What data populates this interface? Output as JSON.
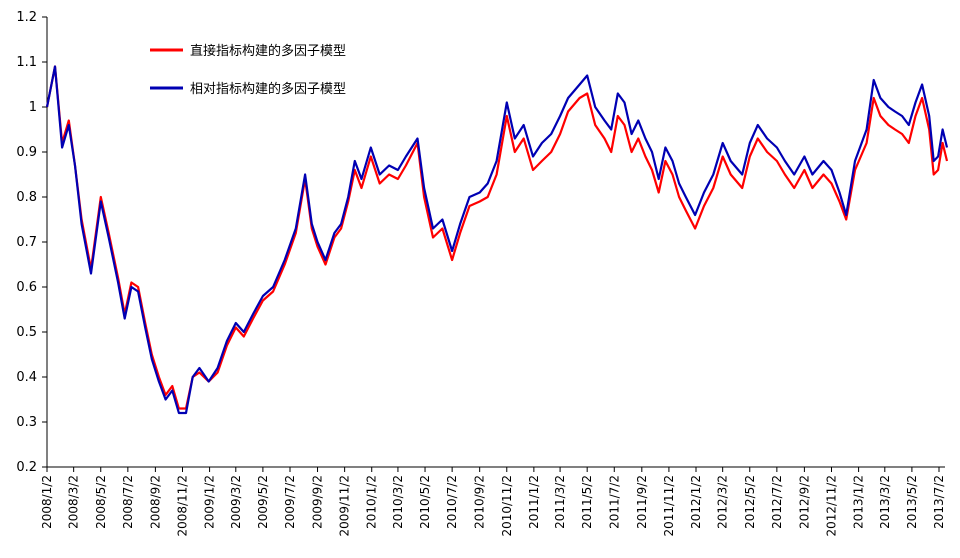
{
  "chart_data": {
    "type": "line",
    "title": "",
    "xlabel": "",
    "ylabel": "",
    "ylim": [
      0.2,
      1.2
    ],
    "yticks": [
      "0.2",
      "0.3",
      "0.4",
      "0.5",
      "0.6",
      "0.7",
      "0.8",
      "0.9",
      "1",
      "1.1",
      "1.2"
    ],
    "xticks": [
      "2008/1/2",
      "2008/3/2",
      "2008/5/2",
      "2008/7/2",
      "2008/9/2",
      "2008/11/2",
      "2009/1/2",
      "2009/3/2",
      "2009/5/2",
      "2009/7/2",
      "2009/9/2",
      "2009/11/2",
      "2010/1/2",
      "2010/3/2",
      "2010/5/2",
      "2010/7/2",
      "2010/9/2",
      "2010/11/2",
      "2011/1/2",
      "2011/3/2",
      "2011/5/2",
      "2011/7/2",
      "2011/9/2",
      "2011/11/2",
      "2012/1/2",
      "2012/3/2",
      "2012/5/2",
      "2012/7/2",
      "2012/9/2",
      "2012/11/2",
      "2013/1/2",
      "2013/3/2",
      "2013/5/2",
      "2013/7/2"
    ],
    "grid": false,
    "legend_position": "top-left",
    "series": [
      {
        "name": "直接指标构建的多因子模型",
        "color": "#ff0000",
        "points": [
          [
            "2008/1/2",
            1.0
          ],
          [
            "2008/1/20",
            1.09
          ],
          [
            "2008/2/5",
            0.92
          ],
          [
            "2008/2/20",
            0.97
          ],
          [
            "2008/3/5",
            0.87
          ],
          [
            "2008/3/20",
            0.75
          ],
          [
            "2008/4/10",
            0.64
          ],
          [
            "2008/5/2",
            0.8
          ],
          [
            "2008/5/20",
            0.72
          ],
          [
            "2008/6/10",
            0.62
          ],
          [
            "2008/6/25",
            0.54
          ],
          [
            "2008/7/10",
            0.61
          ],
          [
            "2008/7/25",
            0.6
          ],
          [
            "2008/8/10",
            0.52
          ],
          [
            "2008/8/25",
            0.45
          ],
          [
            "2008/9/10",
            0.4
          ],
          [
            "2008/9/25",
            0.36
          ],
          [
            "2008/10/10",
            0.38
          ],
          [
            "2008/10/25",
            0.33
          ],
          [
            "2008/11/10",
            0.33
          ],
          [
            "2008/11/25",
            0.4
          ],
          [
            "2008/12/10",
            0.41
          ],
          [
            "2008/12/31",
            0.39
          ],
          [
            "2009/1/20",
            0.41
          ],
          [
            "2009/2/10",
            0.47
          ],
          [
            "2009/3/2",
            0.51
          ],
          [
            "2009/3/20",
            0.49
          ],
          [
            "2009/4/10",
            0.53
          ],
          [
            "2009/5/2",
            0.57
          ],
          [
            "2009/5/25",
            0.59
          ],
          [
            "2009/6/20",
            0.65
          ],
          [
            "2009/7/15",
            0.72
          ],
          [
            "2009/8/5",
            0.84
          ],
          [
            "2009/8/20",
            0.73
          ],
          [
            "2009/9/2",
            0.69
          ],
          [
            "2009/9/20",
            0.65
          ],
          [
            "2009/10/10",
            0.71
          ],
          [
            "2009/10/25",
            0.73
          ],
          [
            "2009/11/10",
            0.79
          ],
          [
            "2009/11/25",
            0.86
          ],
          [
            "2009/12/10",
            0.82
          ],
          [
            "2009/12/31",
            0.89
          ],
          [
            "2010/1/20",
            0.83
          ],
          [
            "2010/2/10",
            0.85
          ],
          [
            "2010/3/2",
            0.84
          ],
          [
            "2010/3/20",
            0.87
          ],
          [
            "2010/4/15",
            0.92
          ],
          [
            "2010/4/30",
            0.8
          ],
          [
            "2010/5/20",
            0.71
          ],
          [
            "2010/6/10",
            0.73
          ],
          [
            "2010/7/2",
            0.66
          ],
          [
            "2010/7/20",
            0.72
          ],
          [
            "2010/8/10",
            0.78
          ],
          [
            "2010/9/2",
            0.79
          ],
          [
            "2010/9/20",
            0.8
          ],
          [
            "2010/10/10",
            0.85
          ],
          [
            "2010/11/2",
            0.98
          ],
          [
            "2010/11/20",
            0.9
          ],
          [
            "2010/12/10",
            0.93
          ],
          [
            "2010/12/31",
            0.86
          ],
          [
            "2011/1/20",
            0.88
          ],
          [
            "2011/2/10",
            0.9
          ],
          [
            "2011/3/2",
            0.94
          ],
          [
            "2011/3/20",
            0.99
          ],
          [
            "2011/4/15",
            1.02
          ],
          [
            "2011/5/2",
            1.03
          ],
          [
            "2011/5/20",
            0.96
          ],
          [
            "2011/6/10",
            0.93
          ],
          [
            "2011/6/25",
            0.9
          ],
          [
            "2011/7/10",
            0.98
          ],
          [
            "2011/7/25",
            0.96
          ],
          [
            "2011/8/10",
            0.9
          ],
          [
            "2011/8/25",
            0.93
          ],
          [
            "2011/9/10",
            0.89
          ],
          [
            "2011/9/25",
            0.86
          ],
          [
            "2011/10/10",
            0.81
          ],
          [
            "2011/10/25",
            0.88
          ],
          [
            "2011/11/10",
            0.85
          ],
          [
            "2011/11/25",
            0.8
          ],
          [
            "2011/12/10",
            0.77
          ],
          [
            "2011/12/31",
            0.73
          ],
          [
            "2012/1/20",
            0.78
          ],
          [
            "2012/2/10",
            0.82
          ],
          [
            "2012/3/2",
            0.89
          ],
          [
            "2012/3/20",
            0.85
          ],
          [
            "2012/4/15",
            0.82
          ],
          [
            "2012/5/2",
            0.89
          ],
          [
            "2012/5/20",
            0.93
          ],
          [
            "2012/6/10",
            0.9
          ],
          [
            "2012/7/2",
            0.88
          ],
          [
            "2012/7/20",
            0.85
          ],
          [
            "2012/8/10",
            0.82
          ],
          [
            "2012/9/2",
            0.86
          ],
          [
            "2012/9/20",
            0.82
          ],
          [
            "2012/10/15",
            0.85
          ],
          [
            "2012/11/2",
            0.83
          ],
          [
            "2012/11/20",
            0.79
          ],
          [
            "2012/12/5",
            0.75
          ],
          [
            "2012/12/25",
            0.86
          ],
          [
            "2013/1/20",
            0.92
          ],
          [
            "2013/2/5",
            1.02
          ],
          [
            "2013/2/20",
            0.98
          ],
          [
            "2013/3/10",
            0.96
          ],
          [
            "2013/3/25",
            0.95
          ],
          [
            "2013/4/10",
            0.94
          ],
          [
            "2013/4/25",
            0.92
          ],
          [
            "2013/5/10",
            0.98
          ],
          [
            "2013/5/25",
            1.02
          ],
          [
            "2013/6/10",
            0.95
          ],
          [
            "2013/6/20",
            0.85
          ],
          [
            "2013/6/30",
            0.86
          ],
          [
            "2013/7/10",
            0.92
          ],
          [
            "2013/7/20",
            0.88
          ]
        ]
      },
      {
        "name": "相对指标构建的多因子模型",
        "color": "#0000b3",
        "points": [
          [
            "2008/1/2",
            1.0
          ],
          [
            "2008/1/20",
            1.09
          ],
          [
            "2008/2/5",
            0.91
          ],
          [
            "2008/2/20",
            0.96
          ],
          [
            "2008/3/5",
            0.87
          ],
          [
            "2008/3/20",
            0.74
          ],
          [
            "2008/4/10",
            0.63
          ],
          [
            "2008/5/2",
            0.79
          ],
          [
            "2008/5/20",
            0.71
          ],
          [
            "2008/6/10",
            0.61
          ],
          [
            "2008/6/25",
            0.53
          ],
          [
            "2008/7/10",
            0.6
          ],
          [
            "2008/7/25",
            0.59
          ],
          [
            "2008/8/10",
            0.51
          ],
          [
            "2008/8/25",
            0.44
          ],
          [
            "2008/9/10",
            0.39
          ],
          [
            "2008/9/25",
            0.35
          ],
          [
            "2008/10/10",
            0.37
          ],
          [
            "2008/10/25",
            0.32
          ],
          [
            "2008/11/10",
            0.32
          ],
          [
            "2008/11/25",
            0.4
          ],
          [
            "2008/12/10",
            0.42
          ],
          [
            "2008/12/31",
            0.39
          ],
          [
            "2009/1/20",
            0.42
          ],
          [
            "2009/2/10",
            0.48
          ],
          [
            "2009/3/2",
            0.52
          ],
          [
            "2009/3/20",
            0.5
          ],
          [
            "2009/4/10",
            0.54
          ],
          [
            "2009/5/2",
            0.58
          ],
          [
            "2009/5/25",
            0.6
          ],
          [
            "2009/6/20",
            0.66
          ],
          [
            "2009/7/15",
            0.73
          ],
          [
            "2009/8/5",
            0.85
          ],
          [
            "2009/8/20",
            0.74
          ],
          [
            "2009/9/2",
            0.7
          ],
          [
            "2009/9/20",
            0.66
          ],
          [
            "2009/10/10",
            0.72
          ],
          [
            "2009/10/25",
            0.74
          ],
          [
            "2009/11/10",
            0.8
          ],
          [
            "2009/11/25",
            0.88
          ],
          [
            "2009/12/10",
            0.84
          ],
          [
            "2009/12/31",
            0.91
          ],
          [
            "2010/1/20",
            0.85
          ],
          [
            "2010/2/10",
            0.87
          ],
          [
            "2010/3/2",
            0.86
          ],
          [
            "2010/3/20",
            0.89
          ],
          [
            "2010/4/15",
            0.93
          ],
          [
            "2010/4/30",
            0.82
          ],
          [
            "2010/5/20",
            0.73
          ],
          [
            "2010/6/10",
            0.75
          ],
          [
            "2010/7/2",
            0.68
          ],
          [
            "2010/7/20",
            0.74
          ],
          [
            "2010/8/10",
            0.8
          ],
          [
            "2010/9/2",
            0.81
          ],
          [
            "2010/9/20",
            0.83
          ],
          [
            "2010/10/10",
            0.88
          ],
          [
            "2010/11/2",
            1.01
          ],
          [
            "2010/11/20",
            0.93
          ],
          [
            "2010/12/10",
            0.96
          ],
          [
            "2010/12/31",
            0.89
          ],
          [
            "2011/1/20",
            0.92
          ],
          [
            "2011/2/10",
            0.94
          ],
          [
            "2011/3/2",
            0.98
          ],
          [
            "2011/3/20",
            1.02
          ],
          [
            "2011/4/15",
            1.05
          ],
          [
            "2011/5/2",
            1.07
          ],
          [
            "2011/5/20",
            1.0
          ],
          [
            "2011/6/10",
            0.97
          ],
          [
            "2011/6/25",
            0.95
          ],
          [
            "2011/7/10",
            1.03
          ],
          [
            "2011/7/25",
            1.01
          ],
          [
            "2011/8/10",
            0.94
          ],
          [
            "2011/8/25",
            0.97
          ],
          [
            "2011/9/10",
            0.93
          ],
          [
            "2011/9/25",
            0.9
          ],
          [
            "2011/10/10",
            0.84
          ],
          [
            "2011/10/25",
            0.91
          ],
          [
            "2011/11/10",
            0.88
          ],
          [
            "2011/11/25",
            0.83
          ],
          [
            "2011/12/10",
            0.8
          ],
          [
            "2011/12/31",
            0.76
          ],
          [
            "2012/1/20",
            0.81
          ],
          [
            "2012/2/10",
            0.85
          ],
          [
            "2012/3/2",
            0.92
          ],
          [
            "2012/3/20",
            0.88
          ],
          [
            "2012/4/15",
            0.85
          ],
          [
            "2012/5/2",
            0.92
          ],
          [
            "2012/5/20",
            0.96
          ],
          [
            "2012/6/10",
            0.93
          ],
          [
            "2012/7/2",
            0.91
          ],
          [
            "2012/7/20",
            0.88
          ],
          [
            "2012/8/10",
            0.85
          ],
          [
            "2012/9/2",
            0.89
          ],
          [
            "2012/9/20",
            0.85
          ],
          [
            "2012/10/15",
            0.88
          ],
          [
            "2012/11/2",
            0.86
          ],
          [
            "2012/11/20",
            0.81
          ],
          [
            "2012/12/5",
            0.76
          ],
          [
            "2012/12/25",
            0.88
          ],
          [
            "2013/1/20",
            0.95
          ],
          [
            "2013/2/5",
            1.06
          ],
          [
            "2013/2/20",
            1.02
          ],
          [
            "2013/3/10",
            1.0
          ],
          [
            "2013/3/25",
            0.99
          ],
          [
            "2013/4/10",
            0.98
          ],
          [
            "2013/4/25",
            0.96
          ],
          [
            "2013/5/10",
            1.01
          ],
          [
            "2013/5/25",
            1.05
          ],
          [
            "2013/6/10",
            0.98
          ],
          [
            "2013/6/20",
            0.88
          ],
          [
            "2013/6/30",
            0.89
          ],
          [
            "2013/7/10",
            0.95
          ],
          [
            "2013/7/20",
            0.91
          ]
        ]
      }
    ]
  }
}
